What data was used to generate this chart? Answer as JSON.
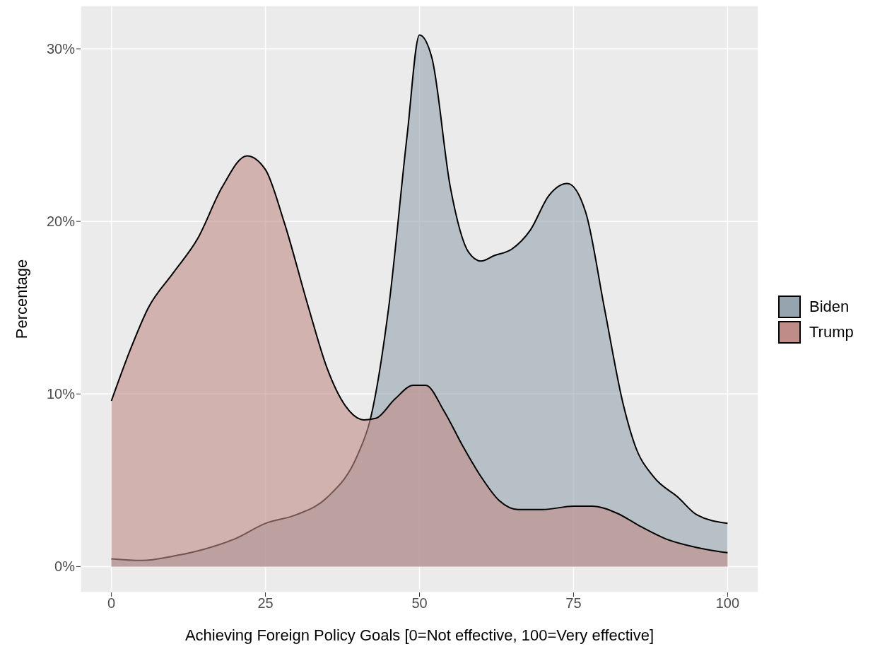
{
  "chart_data": {
    "type": "area",
    "xlabel": "Achieving Foreign Policy Goals [0=Not effective, 100=Very effective]",
    "ylabel": "Percentage",
    "series": [
      {
        "name": "Biden",
        "color": "#95a4ae",
        "x": [
          0,
          5,
          10,
          15,
          20,
          25,
          30,
          35,
          40,
          42,
          45,
          48,
          50,
          52,
          55,
          58,
          60,
          62,
          65,
          68,
          71,
          74,
          77,
          80,
          83,
          85,
          88,
          92,
          95,
          100
        ],
        "values": [
          0.45,
          0.35,
          0.6,
          1.0,
          1.6,
          2.5,
          3.0,
          4.0,
          6.5,
          8.5,
          15,
          25,
          30.8,
          29.5,
          22,
          18.2,
          17.7,
          18,
          18.4,
          19.5,
          21.5,
          22.2,
          20.5,
          15,
          9.5,
          7,
          5.2,
          4,
          3,
          2.5
        ]
      },
      {
        "name": "Trump",
        "color": "#c08c87",
        "x": [
          0,
          3,
          6,
          10,
          14,
          18,
          22,
          25,
          28,
          32,
          35,
          38,
          41,
          43,
          46,
          49,
          51,
          54,
          57,
          60,
          63,
          66,
          70,
          75,
          78,
          82,
          86,
          90,
          95,
          100
        ],
        "values": [
          9.6,
          12.5,
          15,
          17,
          19,
          22,
          23.8,
          23,
          20,
          15,
          11.5,
          9.3,
          8.5,
          8.6,
          9.7,
          10.5,
          10.5,
          9,
          7,
          5.2,
          3.8,
          3.3,
          3.3,
          3.5,
          3.5,
          3.1,
          2.3,
          1.6,
          1.1,
          0.8
        ]
      }
    ],
    "xlim": [
      -5,
      105
    ],
    "xticks": [
      0,
      25,
      50,
      75,
      100
    ],
    "ylim": [
      -1.5,
      32.5
    ],
    "yticks": [
      {
        "value": 0,
        "label": "0%"
      },
      {
        "value": 10,
        "label": "10%"
      },
      {
        "value": 20,
        "label": "20%"
      },
      {
        "value": 30,
        "label": "30%"
      }
    ],
    "grid": true,
    "legend": "right"
  }
}
